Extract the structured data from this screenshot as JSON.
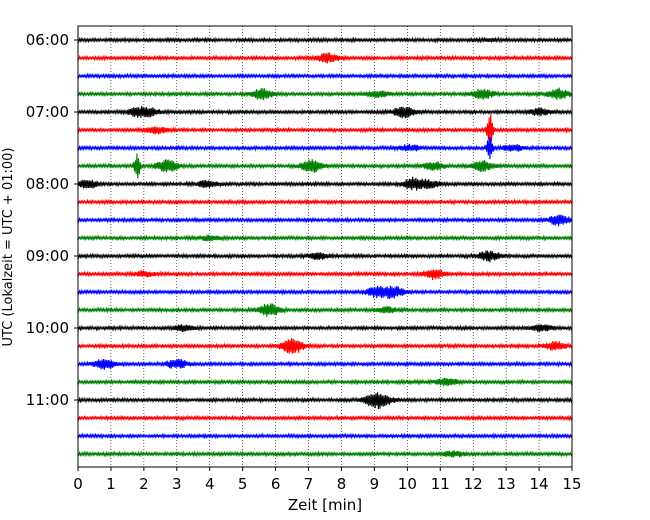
{
  "chart_data": {
    "type": "line",
    "title": "",
    "xlabel": "Zeit  [min]",
    "ylabel": "UTC (Lokalzeit = UTC + 01:00)",
    "xlim": [
      0,
      15
    ],
    "x_ticks": [
      0,
      1,
      2,
      3,
      4,
      5,
      6,
      7,
      8,
      9,
      10,
      11,
      12,
      13,
      14,
      15
    ],
    "y_tick_labels": [
      "06:00",
      "07:00",
      "08:00",
      "09:00",
      "10:00",
      "11:00"
    ],
    "grid": "vertical dotted at each minute",
    "trace_colors": [
      "#000000",
      "#ff0000",
      "#0000ff",
      "#008000"
    ],
    "traces": [
      {
        "start": "06:00",
        "events": [
          [
            12.5,
            0.8
          ]
        ]
      },
      {
        "start": "06:15",
        "events": [
          [
            7.6,
            4.5
          ]
        ]
      },
      {
        "start": "06:30",
        "events": []
      },
      {
        "start": "06:45",
        "events": [
          [
            5.6,
            5
          ],
          [
            9.1,
            3
          ],
          [
            12.3,
            4.5
          ],
          [
            14.6,
            5
          ]
        ]
      },
      {
        "start": "07:00",
        "events": [
          [
            1.8,
            4
          ],
          [
            2.2,
            3
          ],
          [
            9.9,
            5.5
          ],
          [
            14.0,
            3
          ]
        ]
      },
      {
        "start": "07:15",
        "events": [
          [
            2.4,
            3
          ],
          [
            12.5,
            18
          ]
        ]
      },
      {
        "start": "07:30",
        "events": [
          [
            10.1,
            3
          ],
          [
            12.5,
            12
          ],
          [
            13.2,
            3
          ]
        ]
      },
      {
        "start": "07:45",
        "events": [
          [
            1.8,
            12
          ],
          [
            2.7,
            6
          ],
          [
            7.1,
            6
          ],
          [
            10.8,
            4
          ],
          [
            12.3,
            5
          ]
        ]
      },
      {
        "start": "08:00",
        "events": [
          [
            0.3,
            4
          ],
          [
            3.9,
            3
          ],
          [
            10.2,
            5.5
          ],
          [
            10.7,
            3
          ]
        ]
      },
      {
        "start": "08:15",
        "events": []
      },
      {
        "start": "08:30",
        "events": [
          [
            14.6,
            5
          ]
        ]
      },
      {
        "start": "08:45",
        "events": [
          [
            4.0,
            2
          ]
        ]
      },
      {
        "start": "09:00",
        "events": [
          [
            7.3,
            3
          ],
          [
            12.5,
            5
          ]
        ]
      },
      {
        "start": "09:15",
        "events": [
          [
            10.8,
            5
          ],
          [
            2.0,
            2.5
          ]
        ]
      },
      {
        "start": "09:30",
        "events": [
          [
            9.1,
            5
          ],
          [
            9.6,
            5
          ]
        ]
      },
      {
        "start": "09:45",
        "events": [
          [
            5.8,
            6
          ],
          [
            9.4,
            2.5
          ]
        ]
      },
      {
        "start": "10:00",
        "events": [
          [
            3.2,
            2.5
          ],
          [
            14.1,
            3
          ]
        ]
      },
      {
        "start": "10:15",
        "events": [
          [
            6.5,
            8
          ],
          [
            14.5,
            4
          ]
        ]
      },
      {
        "start": "10:30",
        "events": [
          [
            0.8,
            5
          ],
          [
            3.0,
            4.5
          ]
        ]
      },
      {
        "start": "10:45",
        "events": [
          [
            11.2,
            3.5
          ]
        ]
      },
      {
        "start": "11:00",
        "events": [
          [
            9.0,
            7
          ],
          [
            9.3,
            3
          ]
        ]
      },
      {
        "start": "11:15",
        "events": []
      },
      {
        "start": "11:30",
        "events": []
      },
      {
        "start": "11:45",
        "events": [
          [
            11.4,
            2.5
          ]
        ]
      }
    ]
  }
}
